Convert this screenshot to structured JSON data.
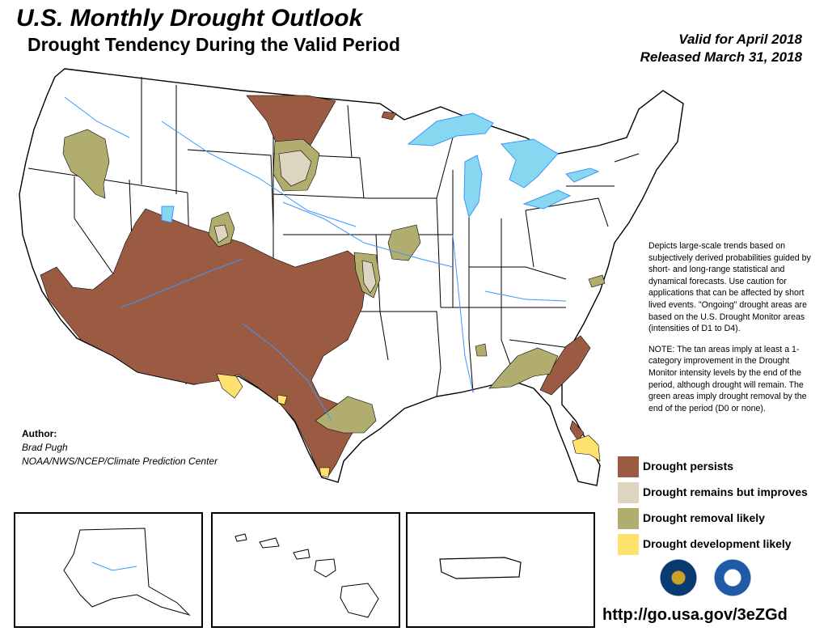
{
  "header": {
    "title": "U.S. Monthly Drought Outlook",
    "subtitle": "Drought Tendency During the Valid Period",
    "valid_for": "Valid for April 2018",
    "released": "Released March 31, 2018"
  },
  "description": {
    "para1": "Depicts large-scale trends based on subjectively derived probabilities guided by short- and long-range statistical and dynamical forecasts. Use caution for applications that can be affected by short lived events. \"Ongoing\" drought areas are based on the U.S. Drought Monitor areas (intensities of D1 to D4).",
    "para2": "NOTE: The tan areas imply at least a 1-category improvement in the Drought Monitor intensity levels by the end of the period, although drought will remain. The green areas imply drought removal by the end of the period (D0 or none)."
  },
  "author": {
    "label": "Author:",
    "name": "Brad Pugh",
    "org": "NOAA/NWS/NCEP/Climate Prediction Center"
  },
  "legend": [
    {
      "label": "Drought persists",
      "color": "#9b5b43"
    },
    {
      "label": "Drought remains but improves",
      "color": "#ddd5c0"
    },
    {
      "label": "Drought removal likely",
      "color": "#b1ad6e"
    },
    {
      "label": "Drought development likely",
      "color": "#ffe16f"
    }
  ],
  "map_colors": {
    "water": "#87d7f0",
    "rivers": "#3c96ff",
    "borders": "#000000"
  },
  "insets": [
    "Alaska",
    "Hawaii",
    "Puerto Rico"
  ],
  "logos": [
    "doc-seal-icon",
    "noaa-logo-icon"
  ],
  "url": "http://go.usa.gov/3eZGd"
}
